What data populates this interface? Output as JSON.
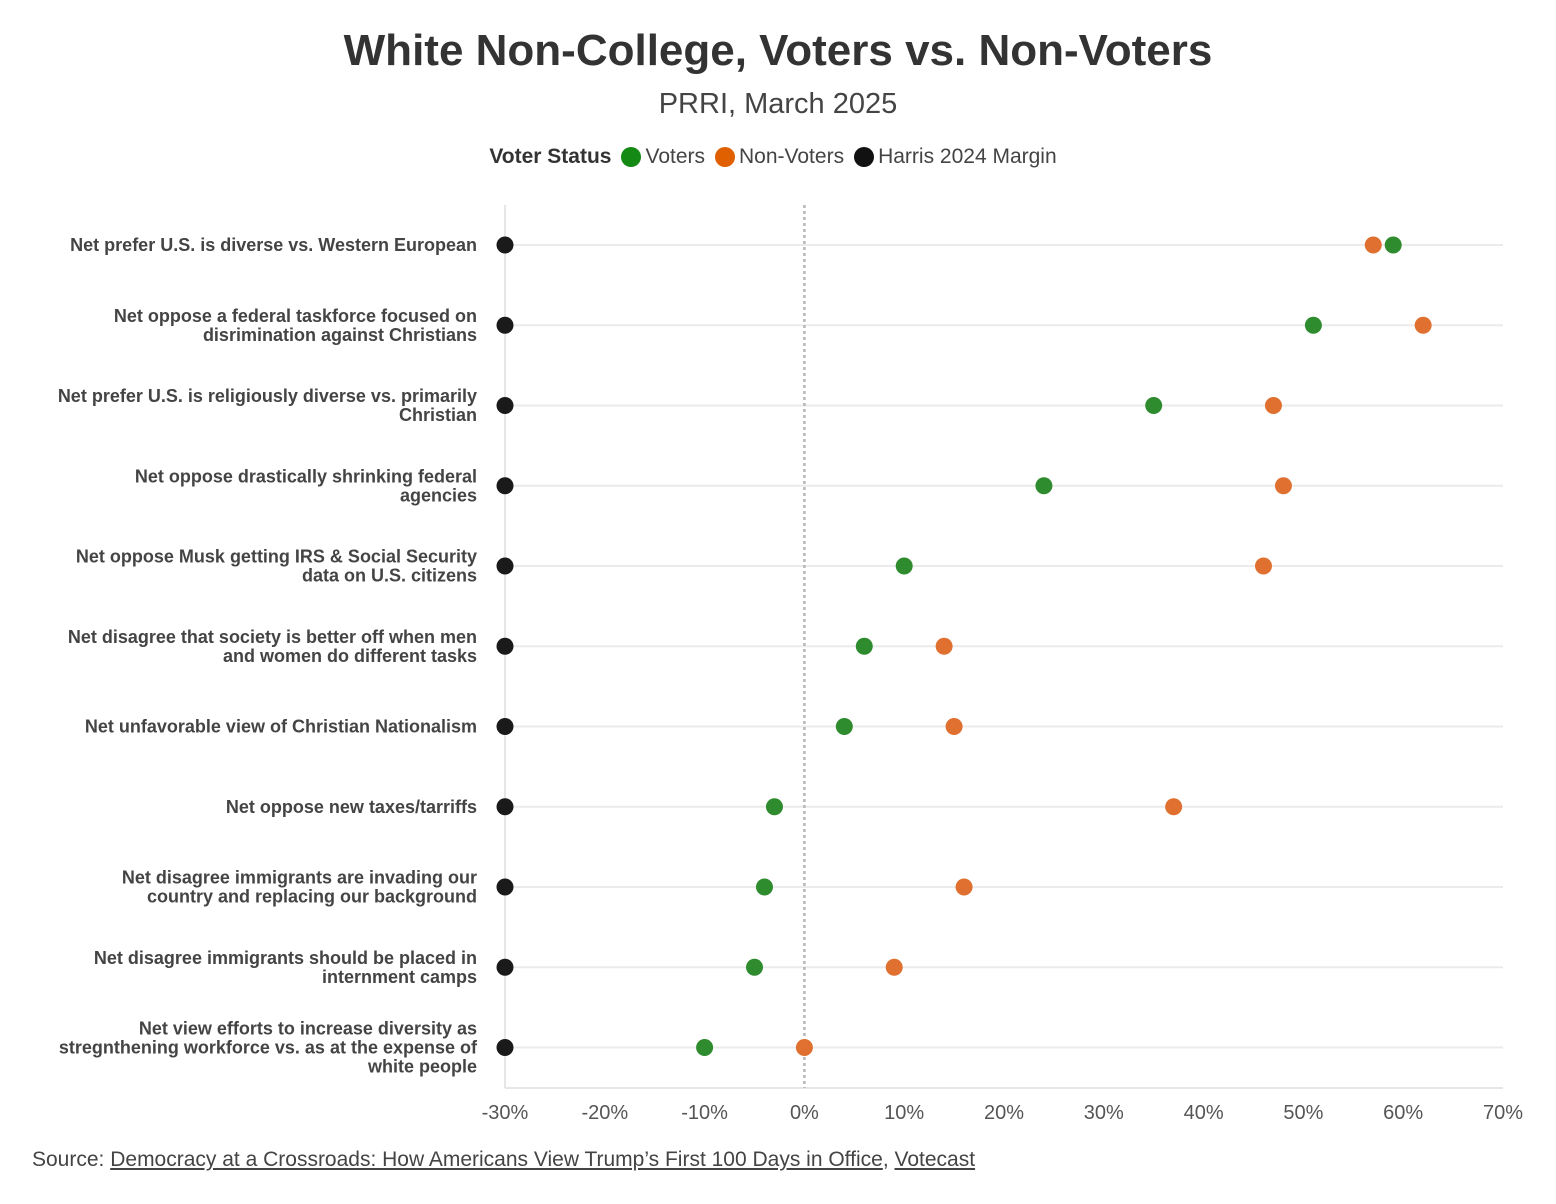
{
  "chart_data": {
    "type": "scatter",
    "title": "White Non-College, Voters vs. Non-Voters",
    "subtitle": "PRRI, March 2025",
    "legend_title": "Voter Status",
    "legend_position": "top-center",
    "x_ticks": [
      "-30%",
      "-20%",
      "-10%",
      "0%",
      "10%",
      "20%",
      "30%",
      "40%",
      "50%",
      "60%",
      "70%"
    ],
    "xlim": [
      -30,
      70
    ],
    "reference_line": 0,
    "categories": [
      "Net prefer U.S. is diverse vs. Western European",
      "Net oppose a federal taskforce focused on disrimination against Christians",
      "Net prefer U.S. is religiously diverse vs. primarily Christian",
      "Net oppose drastically shrinking federal agencies",
      "Net oppose Musk getting IRS & Social Security data on U.S. citizens",
      "Net disagree that society is better off when men and women do different tasks",
      "Net unfavorable view of Christian Nationalism",
      "Net oppose new taxes/tarriffs",
      "Net disagree immigrants are invading our country and replacing our background",
      "Net disagree immigrants should be placed in internment camps",
      "Net view efforts to increase diversity as stregnthening workforce vs. as at the expense of white people"
    ],
    "category_lines": [
      [
        "Net prefer U.S. is diverse vs. Western European"
      ],
      [
        "Net oppose a federal taskforce focused on",
        "disrimination against Christians"
      ],
      [
        "Net prefer U.S. is religiously diverse vs. primarily",
        "Christian"
      ],
      [
        "Net oppose drastically shrinking federal",
        "agencies"
      ],
      [
        "Net oppose Musk getting IRS & Social Security",
        "data on U.S. citizens"
      ],
      [
        "Net disagree that society is better off when men",
        "and women do different tasks"
      ],
      [
        "Net unfavorable view of Christian Nationalism"
      ],
      [
        "Net oppose new taxes/tarriffs"
      ],
      [
        "Net disagree immigrants are invading our",
        "country and replacing our background"
      ],
      [
        "Net disagree immigrants should be placed in",
        "internment camps"
      ],
      [
        "Net view efforts to increase diversity as",
        "stregnthening workforce vs. as at the expense of",
        "white people"
      ]
    ],
    "series": [
      {
        "name": "Voters",
        "color": "#2e8b2e",
        "legend_color": "#148a14",
        "values": [
          59,
          51,
          35,
          24,
          10,
          6,
          4,
          -3,
          -4,
          -5,
          -10
        ]
      },
      {
        "name": "Non-Voters",
        "color": "#e07030",
        "legend_color": "#e06000",
        "values": [
          57,
          62,
          47,
          48,
          46,
          14,
          15,
          37,
          16,
          9,
          0
        ]
      },
      {
        "name": "Harris 2024 Margin",
        "color": "#1a1a1a",
        "legend_color": "#111111",
        "values": [
          -30,
          -30,
          -30,
          -30,
          -30,
          -30,
          -30,
          -30,
          -30,
          -30,
          -30
        ]
      }
    ]
  },
  "source": {
    "prefix": "Source: ",
    "link1": "Democracy at a Crossroads: How Americans View Trump’s First 100 Days in Office",
    "separator": ", ",
    "link2": "Votecast"
  }
}
